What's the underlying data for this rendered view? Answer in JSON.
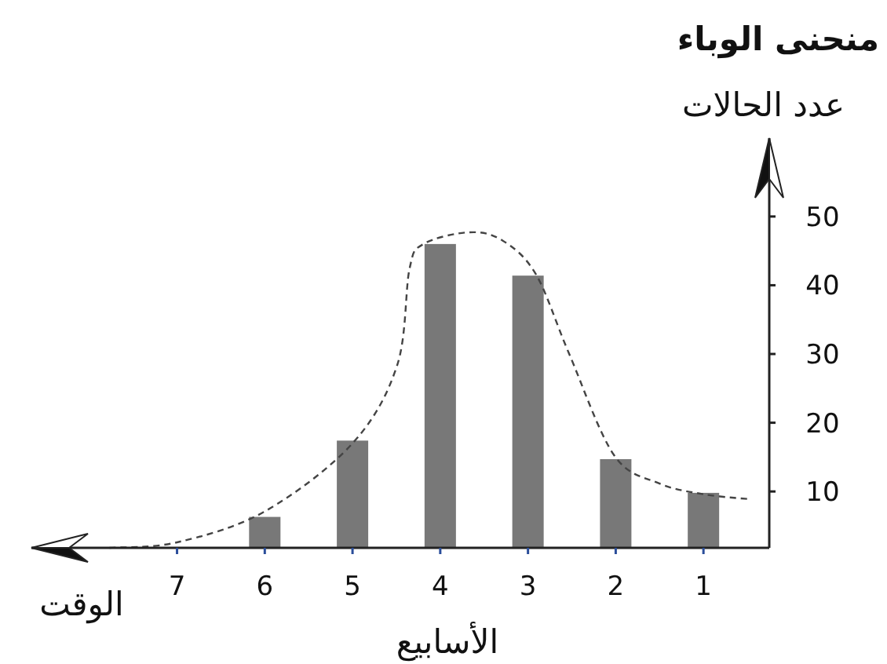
{
  "chart_data": {
    "type": "bar",
    "title": "منحنى الوباء",
    "ylabel": "عدد الحالات",
    "xlabel": "الأسابيع",
    "annotations": [
      "الوقت"
    ],
    "x": [
      6,
      5,
      4,
      3,
      2,
      1
    ],
    "series": [
      {
        "color": "#787878",
        "values": [
          6.3,
          17.4,
          46,
          41.4,
          14.7,
          9.8
        ]
      },
      {
        "type": "line",
        "color": "#444444",
        "line_style": "dashed",
        "x": [
          7.77,
          7,
          6,
          5,
          4.49,
          4.35,
          4.19,
          3.67,
          3.29,
          2.91,
          2.53,
          2.02,
          1.51,
          1,
          0.49
        ],
        "values": [
          1.8,
          2.6,
          7.1,
          17,
          28.4,
          42.4,
          46,
          47.7,
          46.5,
          41.6,
          30,
          15.3,
          11.2,
          9.6,
          8.9
        ]
      }
    ],
    "xlim": [
      8.66,
      0.25
    ],
    "ylim": [
      1.8,
      61.4
    ],
    "xticks": [
      7,
      6,
      5,
      4,
      3,
      2,
      1
    ],
    "yticks": [
      10,
      20,
      30,
      40,
      50
    ]
  }
}
